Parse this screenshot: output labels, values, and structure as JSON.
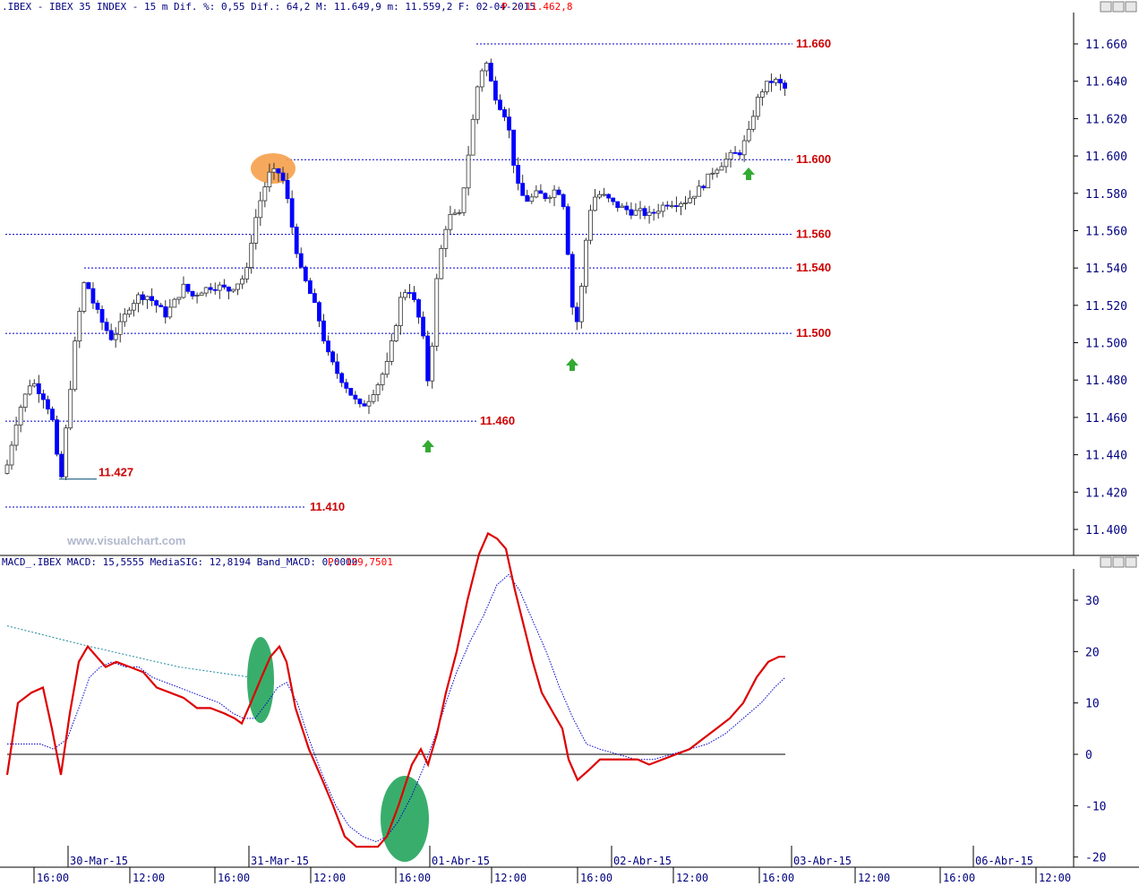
{
  "price_header": {
    "symbol_text": ".IBEX - IBEX 35 INDEX -  15 m Dif. %: 0,55 Dif.: 64,2 M: 11.649,9 m: 11.559,2 F: 02-04-2015",
    "price_text": "P : 11.462,8"
  },
  "macd_header": {
    "text": "MACD_.IBEX MACD: 15,5555 MediaSIG: 12,8194 Band_MACD: 0,0000",
    "price_text": "P: 129,7501"
  },
  "watermark": "www.visualchart.com",
  "colors": {
    "up_candle": "#ffffff",
    "down_candle": "#0000ff",
    "level_line": "#0000cc",
    "level_label": "#cc0000",
    "macd_line": "#dd0000",
    "signal_line": "#0000cc",
    "highlight_orange": "#f5a04a",
    "highlight_green": "#2eaa64",
    "arrow_green": "#33aa33",
    "axis_text": "#000080"
  },
  "icons": [
    "window-minimize-icon",
    "window-restore-icon",
    "window-close-icon",
    "up-arrow-icon"
  ],
  "chart_data": [
    {
      "type": "candlestick",
      "title": ".IBEX - IBEX 35 INDEX - 15 m",
      "ylim": [
        11395,
        11672
      ],
      "yticks": [
        "11.660",
        "11.640",
        "11.620",
        "11.600",
        "11.580",
        "11.560",
        "11.540",
        "11.520",
        "11.500",
        "11.480",
        "11.460",
        "11.440",
        "11.420",
        "11.400"
      ],
      "levels": [
        {
          "value": 11660,
          "label": "11.660",
          "x_start": 532,
          "x_end": 885
        },
        {
          "value": 11598,
          "label": "11.600",
          "x_start": 320,
          "x_end": 885
        },
        {
          "value": 11558,
          "label": "11.560",
          "x_start": 6,
          "x_end": 885
        },
        {
          "value": 11540,
          "label": "11.540",
          "x_start": 94,
          "x_end": 885
        },
        {
          "value": 11505,
          "label": "11.500",
          "x_start": 6,
          "x_end": 885
        },
        {
          "value": 11458,
          "label": "11.460",
          "x_start": 6,
          "x_end": 532
        },
        {
          "value": 11412,
          "label": "11.410",
          "x_start": 6,
          "x_end": 342
        },
        {
          "value": 11427,
          "label": "11.427",
          "x_start": 66,
          "x_end": 108,
          "solid": true
        }
      ],
      "anchors": [
        [
          6,
          11430
        ],
        [
          20,
          11462
        ],
        [
          35,
          11480
        ],
        [
          50,
          11470
        ],
        [
          58,
          11460
        ],
        [
          63,
          11440
        ],
        [
          68,
          11425
        ],
        [
          75,
          11460
        ],
        [
          85,
          11505
        ],
        [
          95,
          11535
        ],
        [
          105,
          11520
        ],
        [
          115,
          11510
        ],
        [
          125,
          11502
        ],
        [
          135,
          11510
        ],
        [
          145,
          11520
        ],
        [
          155,
          11525
        ],
        [
          165,
          11525
        ],
        [
          175,
          11520
        ],
        [
          185,
          11515
        ],
        [
          195,
          11522
        ],
        [
          205,
          11530
        ],
        [
          215,
          11525
        ],
        [
          225,
          11528
        ],
        [
          235,
          11530
        ],
        [
          245,
          11530
        ],
        [
          255,
          11528
        ],
        [
          265,
          11532
        ],
        [
          272,
          11535
        ],
        [
          277,
          11540
        ],
        [
          282,
          11560
        ],
        [
          290,
          11575
        ],
        [
          300,
          11590
        ],
        [
          310,
          11592
        ],
        [
          318,
          11585
        ],
        [
          325,
          11565
        ],
        [
          335,
          11540
        ],
        [
          345,
          11528
        ],
        [
          355,
          11515
        ],
        [
          365,
          11495
        ],
        [
          375,
          11485
        ],
        [
          385,
          11478
        ],
        [
          395,
          11470
        ],
        [
          403,
          11465
        ],
        [
          412,
          11470
        ],
        [
          422,
          11478
        ],
        [
          432,
          11488
        ],
        [
          440,
          11505
        ],
        [
          448,
          11525
        ],
        [
          456,
          11530
        ],
        [
          464,
          11520
        ],
        [
          472,
          11505
        ],
        [
          477,
          11478
        ],
        [
          482,
          11495
        ],
        [
          488,
          11535
        ],
        [
          496,
          11560
        ],
        [
          505,
          11570
        ],
        [
          512,
          11565
        ],
        [
          520,
          11590
        ],
        [
          527,
          11615
        ],
        [
          534,
          11640
        ],
        [
          542,
          11652
        ],
        [
          548,
          11640
        ],
        [
          556,
          11628
        ],
        [
          562,
          11625
        ],
        [
          568,
          11615
        ],
        [
          574,
          11595
        ],
        [
          580,
          11580
        ],
        [
          590,
          11576
        ],
        [
          600,
          11580
        ],
        [
          610,
          11578
        ],
        [
          620,
          11582
        ],
        [
          628,
          11580
        ],
        [
          634,
          11550
        ],
        [
          640,
          11515
        ],
        [
          646,
          11510
        ],
        [
          652,
          11545
        ],
        [
          658,
          11570
        ],
        [
          666,
          11580
        ],
        [
          676,
          11578
        ],
        [
          686,
          11574
        ],
        [
          696,
          11572
        ],
        [
          706,
          11570
        ],
        [
          716,
          11570
        ],
        [
          726,
          11568
        ],
        [
          736,
          11572
        ],
        [
          746,
          11575
        ],
        [
          756,
          11575
        ],
        [
          766,
          11576
        ],
        [
          776,
          11580
        ],
        [
          786,
          11585
        ],
        [
          796,
          11592
        ],
        [
          806,
          11596
        ],
        [
          816,
          11600
        ],
        [
          826,
          11602
        ],
        [
          836,
          11612
        ],
        [
          844,
          11628
        ],
        [
          852,
          11636
        ],
        [
          860,
          11640
        ],
        [
          868,
          11640
        ],
        [
          876,
          11636
        ]
      ]
    },
    {
      "type": "line",
      "title": "MACD",
      "ylim": [
        -22,
        35
      ],
      "yticks": [
        "30",
        "20",
        "10",
        "0",
        "-10",
        "-20"
      ],
      "series": [
        {
          "name": "MACD",
          "points": [
            [
              8,
              -4
            ],
            [
              20,
              10
            ],
            [
              35,
              12
            ],
            [
              48,
              13
            ],
            [
              58,
              5
            ],
            [
              68,
              -4
            ],
            [
              78,
              8
            ],
            [
              88,
              18
            ],
            [
              98,
              21
            ],
            [
              108,
              19
            ],
            [
              118,
              17
            ],
            [
              130,
              18
            ],
            [
              145,
              17
            ],
            [
              160,
              16
            ],
            [
              175,
              13
            ],
            [
              190,
              12
            ],
            [
              205,
              11
            ],
            [
              220,
              9
            ],
            [
              235,
              9
            ],
            [
              250,
              8
            ],
            [
              262,
              7
            ],
            [
              270,
              6
            ],
            [
              280,
              10
            ],
            [
              292,
              15
            ],
            [
              302,
              19
            ],
            [
              312,
              21
            ],
            [
              320,
              18
            ],
            [
              330,
              9
            ],
            [
              345,
              1
            ],
            [
              360,
              -5
            ],
            [
              372,
              -10
            ],
            [
              385,
              -16
            ],
            [
              398,
              -18
            ],
            [
              410,
              -18
            ],
            [
              422,
              -18
            ],
            [
              432,
              -16
            ],
            [
              445,
              -10
            ],
            [
              460,
              -2
            ],
            [
              470,
              1
            ],
            [
              478,
              -2
            ],
            [
              488,
              4
            ],
            [
              498,
              12
            ],
            [
              510,
              20
            ],
            [
              522,
              30
            ],
            [
              535,
              39
            ],
            [
              545,
              43
            ],
            [
              555,
              42
            ],
            [
              565,
              40
            ],
            [
              575,
              32
            ],
            [
              585,
              25
            ],
            [
              595,
              18
            ],
            [
              605,
              12
            ],
            [
              618,
              8
            ],
            [
              628,
              5
            ],
            [
              635,
              -1
            ],
            [
              645,
              -5
            ],
            [
              658,
              -3
            ],
            [
              670,
              -1
            ],
            [
              685,
              -1
            ],
            [
              700,
              -1
            ],
            [
              712,
              -1
            ],
            [
              725,
              -2
            ],
            [
              740,
              -1
            ],
            [
              755,
              0
            ],
            [
              770,
              1
            ],
            [
              785,
              3
            ],
            [
              800,
              5
            ],
            [
              815,
              7
            ],
            [
              830,
              10
            ],
            [
              845,
              15
            ],
            [
              858,
              18
            ],
            [
              870,
              19
            ],
            [
              877,
              19
            ]
          ]
        },
        {
          "name": "MediaSIG",
          "points": [
            [
              8,
              2
            ],
            [
              25,
              2
            ],
            [
              45,
              2
            ],
            [
              60,
              1
            ],
            [
              75,
              3
            ],
            [
              88,
              9
            ],
            [
              100,
              15
            ],
            [
              112,
              17
            ],
            [
              125,
              18
            ],
            [
              140,
              17
            ],
            [
              155,
              17
            ],
            [
              170,
              15
            ],
            [
              185,
              14
            ],
            [
              200,
              13
            ],
            [
              215,
              12
            ],
            [
              230,
              11
            ],
            [
              245,
              10
            ],
            [
              260,
              8
            ],
            [
              272,
              7
            ],
            [
              285,
              7
            ],
            [
              298,
              10
            ],
            [
              310,
              13
            ],
            [
              320,
              14
            ],
            [
              332,
              10
            ],
            [
              345,
              3
            ],
            [
              360,
              -4
            ],
            [
              375,
              -10
            ],
            [
              390,
              -14
            ],
            [
              405,
              -16
            ],
            [
              420,
              -17
            ],
            [
              432,
              -16
            ],
            [
              445,
              -13
            ],
            [
              460,
              -8
            ],
            [
              472,
              -3
            ],
            [
              485,
              3
            ],
            [
              498,
              10
            ],
            [
              510,
              16
            ],
            [
              525,
              22
            ],
            [
              540,
              27
            ],
            [
              555,
              33
            ],
            [
              568,
              35
            ],
            [
              580,
              32
            ],
            [
              595,
              26
            ],
            [
              610,
              20
            ],
            [
              625,
              13
            ],
            [
              640,
              7
            ],
            [
              655,
              2
            ],
            [
              670,
              1
            ],
            [
              690,
              0
            ],
            [
              710,
              -1
            ],
            [
              730,
              -1
            ],
            [
              750,
              0
            ],
            [
              770,
              1
            ],
            [
              790,
              2
            ],
            [
              810,
              4
            ],
            [
              830,
              7
            ],
            [
              850,
              10
            ],
            [
              865,
              13
            ],
            [
              877,
              15
            ]
          ]
        }
      ]
    }
  ],
  "time_axis": {
    "date_labels": [
      {
        "x": 76,
        "text": "30-Mar-15"
      },
      {
        "x": 278,
        "text": "31-Mar-15"
      },
      {
        "x": 480,
        "text": "01-Abr-15"
      },
      {
        "x": 683,
        "text": "02-Abr-15"
      },
      {
        "x": 884,
        "text": "03-Abr-15"
      },
      {
        "x": 1087,
        "text": "06-Abr-15"
      }
    ],
    "hour_labels": [
      {
        "x": 38,
        "text": "16:00"
      },
      {
        "x": 145,
        "text": "12:00"
      },
      {
        "x": 240,
        "text": "16:00"
      },
      {
        "x": 347,
        "text": "12:00"
      },
      {
        "x": 442,
        "text": "16:00"
      },
      {
        "x": 549,
        "text": "12:00"
      },
      {
        "x": 645,
        "text": "16:00"
      },
      {
        "x": 752,
        "text": "12:00"
      },
      {
        "x": 848,
        "text": "16:00"
      },
      {
        "x": 955,
        "text": "12:00"
      },
      {
        "x": 1050,
        "text": "16:00"
      },
      {
        "x": 1157,
        "text": "12:00"
      }
    ]
  }
}
